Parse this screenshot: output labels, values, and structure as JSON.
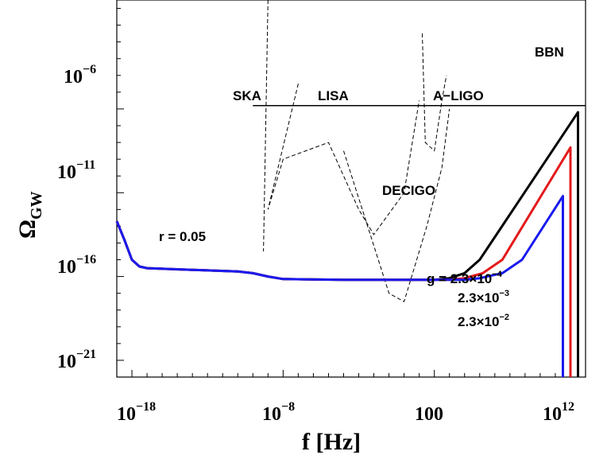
{
  "chart_data": {
    "type": "line",
    "title": "",
    "xlabel": "f [Hz]",
    "ylabel_main": "Ω",
    "ylabel_sub": "GW",
    "x_scale": "log10",
    "y_scale": "log10",
    "xlim_log10": [
      -19,
      12
    ],
    "ylim_log10": [
      -22,
      0.5
    ],
    "grid": false,
    "x_ticks": [
      {
        "base": "10",
        "exp": "−18",
        "log10": -18
      },
      {
        "base": "10",
        "exp": "−8",
        "log10": -8
      },
      {
        "base": "100",
        "exp": "",
        "log10": 2
      },
      {
        "base": "10",
        "exp": "12",
        "log10": 12
      }
    ],
    "y_ticks": [
      {
        "base": "10",
        "exp": "−6",
        "log10": -6
      },
      {
        "base": "10",
        "exp": "−11",
        "log10": -11
      },
      {
        "base": "10",
        "exp": "−16",
        "log10": -16
      },
      {
        "base": "10",
        "exp": "−21",
        "log10": -21
      }
    ],
    "bbn_bound": {
      "label": "BBN",
      "log10_y": -5.8,
      "log10_x_start": -10,
      "log10_x_end": 12
    },
    "sensitivity_curves": [
      {
        "label": "SKA",
        "points_log10": [
          [
            -9,
            0.5
          ],
          [
            -9.3,
            -14.5
          ]
        ]
      },
      {
        "label": "LISA",
        "points_log10": [
          [
            -7,
            -4.5
          ],
          [
            -9,
            -12
          ],
          [
            -8,
            -9
          ],
          [
            -5,
            -8
          ],
          [
            -3,
            -12
          ],
          [
            -2,
            -13.5
          ],
          [
            0,
            -11
          ],
          [
            1,
            -5.5
          ]
        ]
      },
      {
        "label": "DECIGO",
        "points_log10": [
          [
            -4,
            -8.5
          ],
          [
            -1,
            -17
          ],
          [
            0,
            -17.5
          ],
          [
            1.5,
            -13
          ],
          [
            2.5,
            -9.5
          ],
          [
            3,
            -6
          ]
        ]
      },
      {
        "label": "A−LIGO",
        "points_log10": [
          [
            1.2,
            -1.5
          ],
          [
            1.4,
            -8
          ],
          [
            2,
            -8.5
          ],
          [
            2.5,
            -5.5
          ],
          [
            2.8,
            -4
          ]
        ]
      }
    ],
    "annotations": [
      {
        "text": "r = 0.05"
      },
      {
        "text_base": "g = 2.3×10",
        "text_exp": "−4"
      },
      {
        "text_base": "2.3×10",
        "text_exp": "−3"
      },
      {
        "text_base": "2.3×10",
        "text_exp": "−2"
      }
    ],
    "series": [
      {
        "name": "g = 2.3×10^−4",
        "color": "#000000",
        "points_log10": [
          [
            -19,
            -12.7
          ],
          [
            -18.5,
            -13.8
          ],
          [
            -18,
            -15.0
          ],
          [
            -17.5,
            -15.4
          ],
          [
            -17,
            -15.5
          ],
          [
            -14,
            -15.6
          ],
          [
            -11,
            -15.7
          ],
          [
            -10,
            -15.8
          ],
          [
            -9,
            -16.0
          ],
          [
            -8,
            -16.15
          ],
          [
            -4,
            -16.2
          ],
          [
            2,
            -16.2
          ],
          [
            3,
            -16.1
          ],
          [
            4,
            -15.8
          ],
          [
            5,
            -15.0
          ],
          [
            11.5,
            -6.2
          ],
          [
            11.5,
            -22.5
          ]
        ]
      },
      {
        "name": "g = 2.3×10^−3",
        "color": "#e31a1c",
        "points_log10": [
          [
            -19,
            -12.7
          ],
          [
            -18.5,
            -13.8
          ],
          [
            -18,
            -15.0
          ],
          [
            -17.5,
            -15.4
          ],
          [
            -17,
            -15.5
          ],
          [
            -14,
            -15.6
          ],
          [
            -11,
            -15.7
          ],
          [
            -10,
            -15.8
          ],
          [
            -9,
            -16.0
          ],
          [
            -8,
            -16.15
          ],
          [
            -4,
            -16.2
          ],
          [
            3,
            -16.2
          ],
          [
            4,
            -16.1
          ],
          [
            5.2,
            -15.8
          ],
          [
            6.5,
            -15.0
          ],
          [
            11.0,
            -8.3
          ],
          [
            11.0,
            -22.5
          ]
        ]
      },
      {
        "name": "g = 2.3×10^−2",
        "color": "#1a1aee",
        "points_log10": [
          [
            -19,
            -12.7
          ],
          [
            -18.5,
            -13.8
          ],
          [
            -18,
            -15.0
          ],
          [
            -17.5,
            -15.4
          ],
          [
            -17,
            -15.5
          ],
          [
            -14,
            -15.6
          ],
          [
            -11,
            -15.7
          ],
          [
            -10,
            -15.8
          ],
          [
            -9,
            -16.0
          ],
          [
            -8,
            -16.15
          ],
          [
            -4,
            -16.2
          ],
          [
            4,
            -16.2
          ],
          [
            5,
            -16.1
          ],
          [
            6.5,
            -15.8
          ],
          [
            7.8,
            -15.0
          ],
          [
            10.5,
            -11.2
          ],
          [
            10.5,
            -22.5
          ]
        ]
      }
    ]
  }
}
